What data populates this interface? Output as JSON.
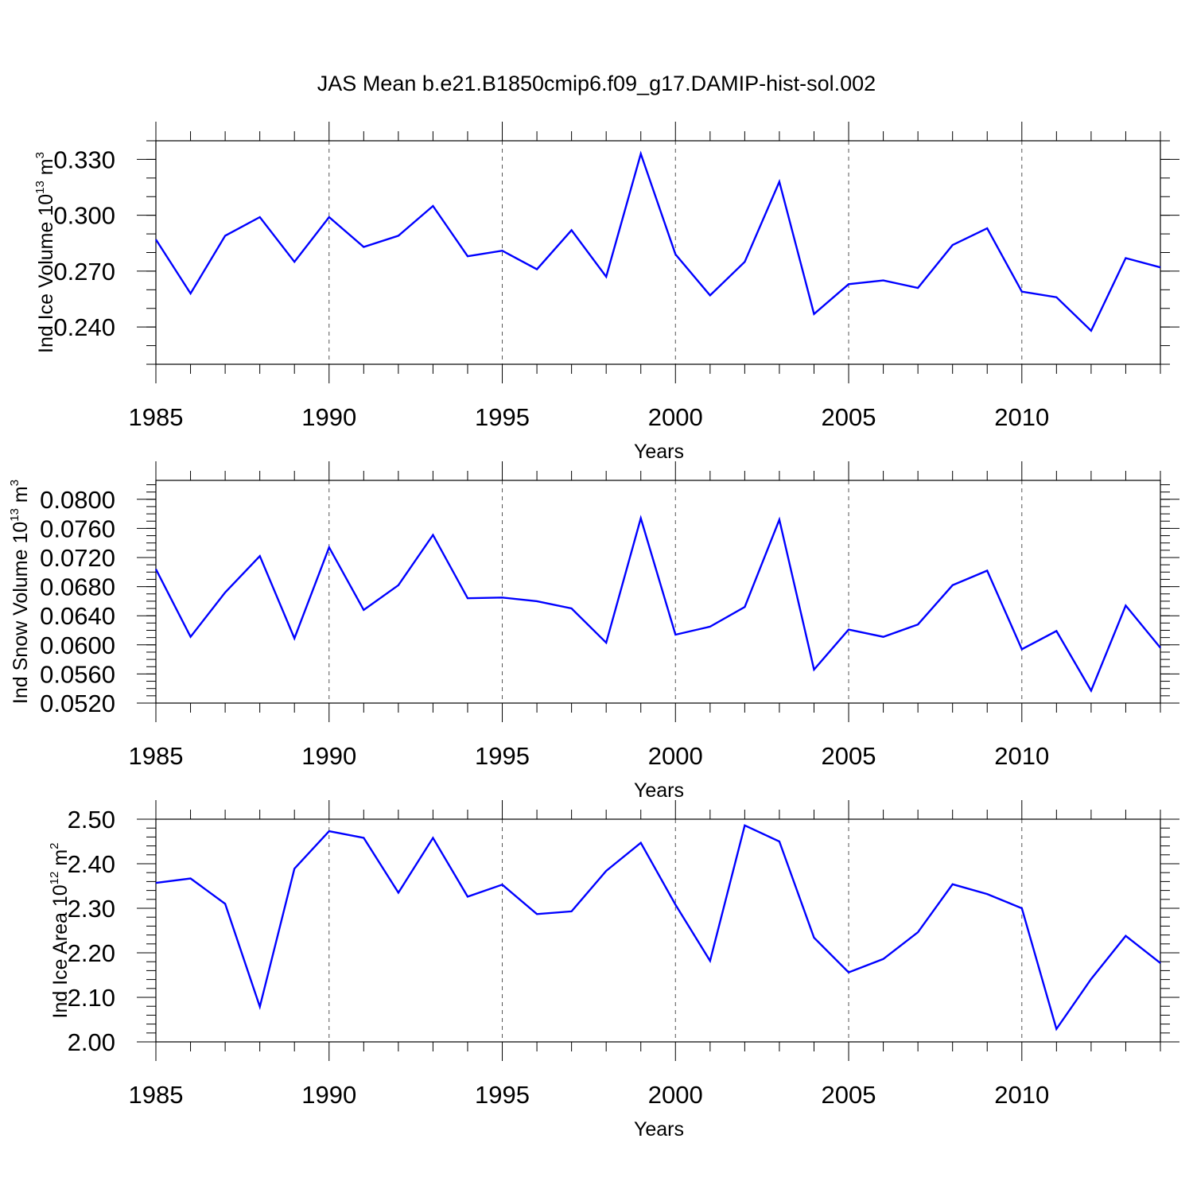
{
  "chart_data": [
    {
      "type": "line",
      "title": "JAS Mean b.e21.B1850cmip6.f09_g17.DAMIP-hist-sol.002",
      "ylabel": {
        "text": "Ind Ice Volume 10",
        "exponent": "13",
        "unit_text": " m",
        "unit_exponent": "3"
      },
      "xlabel": "Years",
      "xlim": [
        1985,
        2014
      ],
      "ylim": [
        0.22,
        0.34
      ],
      "x_ticks": [
        1985,
        1990,
        1995,
        2000,
        2005,
        2010
      ],
      "y_ticks": [
        0.24,
        0.27,
        0.3,
        0.33
      ],
      "y_tick_labels": [
        "0.240",
        "0.270",
        "0.300",
        "0.330"
      ],
      "grid": "vertical-dashed",
      "line_color": "#0000ff",
      "series": [
        {
          "x": [
            1985,
            1986,
            1987,
            1988,
            1989,
            1990,
            1991,
            1992,
            1993,
            1994,
            1995,
            1996,
            1997,
            1998,
            1999,
            2000,
            2001,
            2002,
            2003,
            2004,
            2005,
            2006,
            2007,
            2008,
            2009,
            2010,
            2011,
            2012,
            2013,
            2014
          ],
          "values": [
            0.287,
            0.258,
            0.289,
            0.299,
            0.275,
            0.299,
            0.283,
            0.289,
            0.305,
            0.278,
            0.281,
            0.271,
            0.292,
            0.267,
            0.333,
            0.279,
            0.257,
            0.275,
            0.318,
            0.247,
            0.263,
            0.265,
            0.261,
            0.284,
            0.293,
            0.259,
            0.256,
            0.238,
            0.277,
            0.272
          ]
        }
      ]
    },
    {
      "type": "line",
      "ylabel": {
        "text": "Ind Snow Volume 10",
        "exponent": "13",
        "unit_text": " m",
        "unit_exponent": "3"
      },
      "xlabel": "Years",
      "xlim": [
        1985,
        2014
      ],
      "ylim": [
        0.052,
        0.0826
      ],
      "x_ticks": [
        1985,
        1990,
        1995,
        2000,
        2005,
        2010
      ],
      "y_ticks": [
        0.052,
        0.056,
        0.06,
        0.064,
        0.068,
        0.072,
        0.076,
        0.08
      ],
      "y_tick_labels": [
        "0.0520",
        "0.0560",
        "0.0600",
        "0.0640",
        "0.0680",
        "0.0720",
        "0.0760",
        "0.0800"
      ],
      "grid": "vertical-dashed",
      "line_color": "#0000ff",
      "series": [
        {
          "x": [
            1985,
            1986,
            1987,
            1988,
            1989,
            1990,
            1991,
            1992,
            1993,
            1994,
            1995,
            1996,
            1997,
            1998,
            1999,
            2000,
            2001,
            2002,
            2003,
            2004,
            2005,
            2006,
            2007,
            2008,
            2009,
            2010,
            2011,
            2012,
            2013,
            2014
          ],
          "values": [
            0.0704,
            0.0611,
            0.0672,
            0.0722,
            0.0609,
            0.0734,
            0.0648,
            0.0682,
            0.0751,
            0.0664,
            0.0665,
            0.066,
            0.065,
            0.0603,
            0.0774,
            0.0614,
            0.0625,
            0.0652,
            0.0772,
            0.0566,
            0.0621,
            0.0611,
            0.0628,
            0.0682,
            0.0702,
            0.0594,
            0.0619,
            0.0537,
            0.0654,
            0.0596
          ]
        }
      ]
    },
    {
      "type": "line",
      "ylabel": {
        "text": "Ind Ice Area 10",
        "exponent": "12",
        "unit_text": " m",
        "unit_exponent": "2"
      },
      "xlabel": "Years",
      "xlim": [
        1985,
        2014
      ],
      "ylim": [
        2.0,
        2.5
      ],
      "x_ticks": [
        1985,
        1990,
        1995,
        2000,
        2005,
        2010
      ],
      "y_ticks": [
        2.0,
        2.1,
        2.2,
        2.3,
        2.4,
        2.5
      ],
      "y_tick_labels": [
        "2.00",
        "2.10",
        "2.20",
        "2.30",
        "2.40",
        "2.50"
      ],
      "grid": "vertical-dashed",
      "line_color": "#0000ff",
      "series": [
        {
          "x": [
            1985,
            1986,
            1987,
            1988,
            1989,
            1990,
            1991,
            1992,
            1993,
            1994,
            1995,
            1996,
            1997,
            1998,
            1999,
            2000,
            2001,
            2002,
            2003,
            2004,
            2005,
            2006,
            2007,
            2008,
            2009,
            2010,
            2011,
            2012,
            2013,
            2014
          ],
          "values": [
            2.357,
            2.367,
            2.31,
            2.079,
            2.389,
            2.473,
            2.458,
            2.335,
            2.458,
            2.326,
            2.353,
            2.287,
            2.293,
            2.384,
            2.447,
            2.308,
            2.182,
            2.486,
            2.45,
            2.234,
            2.156,
            2.186,
            2.246,
            2.354,
            2.332,
            2.3,
            2.029,
            2.141,
            2.238,
            2.177
          ]
        }
      ]
    }
  ]
}
